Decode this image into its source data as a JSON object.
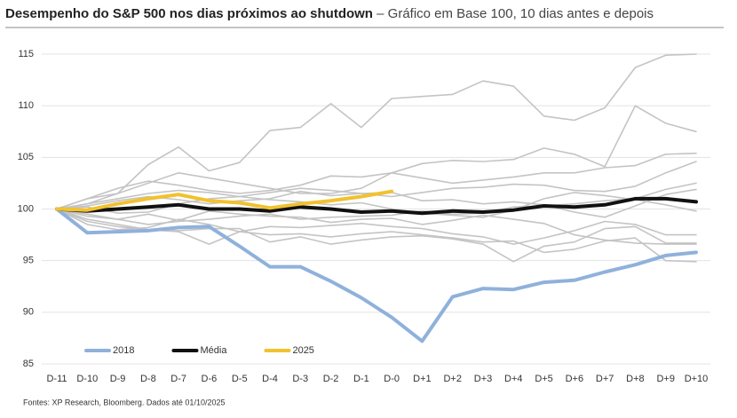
{
  "chart_data": {
    "type": "line",
    "title": "Desempenho do S&P 500 nos dias próximos ao shutdown",
    "subtitle": " – Gráfico em Base 100, 10 dias antes e depois",
    "footnote": "Fontes: XP Research, Bloomberg. Dados até 01/10/2025",
    "categories": [
      "D-11",
      "D-10",
      "D-9",
      "D-8",
      "D-7",
      "D-6",
      "D-5",
      "D-4",
      "D-3",
      "D-2",
      "D-1",
      "D-0",
      "D+1",
      "D+2",
      "D+3",
      "D+4",
      "D+5",
      "D+6",
      "D+7",
      "D+8",
      "D+9",
      "D+10"
    ],
    "ylim": [
      85,
      115
    ],
    "yticks": [
      85,
      90,
      95,
      100,
      105,
      110,
      115
    ],
    "grid": true,
    "legend": "lower left",
    "series": [
      {
        "color": "#c4c4c4",
        "values": [
          100,
          101,
          101.5,
          104.3,
          106,
          103.7,
          104.5,
          107.6,
          107.9,
          110.2,
          107.9,
          110.7,
          110.9,
          111.1,
          112.4,
          111.9,
          109,
          108.6,
          109.8,
          113.7,
          114.9,
          115
        ]
      },
      {
        "color": "#c4c4c4",
        "values": [
          100,
          100.5,
          101.5,
          102.5,
          103.5,
          103,
          102.5,
          102,
          101.5,
          101.5,
          102,
          103.5,
          104.4,
          104.7,
          104.6,
          104.8,
          105.9,
          105.3,
          104.1,
          110,
          108.3,
          107.5
        ]
      },
      {
        "color": "#c4c4c4",
        "values": [
          100,
          101,
          102,
          102.7,
          102.3,
          101.8,
          101.5,
          101.8,
          102.3,
          103.2,
          103.1,
          103.5,
          103,
          102.5,
          102.8,
          103.1,
          103.5,
          103.5,
          104,
          104.2,
          105.3,
          105.4
        ]
      },
      {
        "color": "#c4c4c4",
        "values": [
          100,
          100.5,
          101,
          101.5,
          101.8,
          101.6,
          101.2,
          101.6,
          102,
          101.8,
          101.5,
          101.2,
          101.6,
          102,
          102.1,
          102.4,
          102.3,
          101.8,
          101.7,
          102.2,
          103.5,
          104.6
        ]
      },
      {
        "color": "#c4c4c4",
        "values": [
          100,
          99.5,
          99,
          98.5,
          98.8,
          99,
          99.3,
          99.5,
          99,
          99.2,
          99.3,
          99.4,
          99.8,
          99.5,
          99.6,
          100.2,
          100.3,
          100.5,
          100.8,
          101,
          101.9,
          102.5
        ]
      },
      {
        "color": "#c4c4c4",
        "values": [
          100,
          99,
          98.5,
          98,
          97.8,
          96.6,
          97.8,
          98.3,
          98.2,
          98.4,
          98.6,
          98.3,
          98.1,
          97.6,
          97.3,
          96.6,
          97.2,
          97.9,
          98.8,
          98.5,
          97.5,
          97.5
        ]
      },
      {
        "color": "#c4c4c4",
        "values": [
          100,
          98.8,
          98.3,
          98,
          97.9,
          98.1,
          98.1,
          96.8,
          97.3,
          96.6,
          97,
          97.3,
          97.4,
          97.1,
          96.6,
          94.9,
          96.4,
          96.8,
          98.1,
          98.3,
          96.7,
          96.7
        ]
      },
      {
        "color": "#c4c4c4",
        "values": [
          100,
          98.5,
          98,
          98.2,
          99,
          98.5,
          97.8,
          97.5,
          97.6,
          97.3,
          97.6,
          97.8,
          97.5,
          97.2,
          96.8,
          96.9,
          95.8,
          96.1,
          96.9,
          97.2,
          95,
          94.9
        ]
      },
      {
        "color": "#c4c4c4",
        "values": [
          100,
          100.3,
          100.8,
          101.2,
          100.9,
          100.5,
          100.8,
          101,
          101.7,
          101.3,
          101.5,
          101.6,
          100.8,
          100.9,
          100.5,
          100.7,
          100.4,
          99.7,
          99.2,
          100.3,
          101.4,
          101.9
        ]
      },
      {
        "color": "#c4c4c4",
        "values": [
          100,
          99.3,
          99,
          99.5,
          98.9,
          99.8,
          99.5,
          99.3,
          99.2,
          98.7,
          99,
          99.1,
          98.5,
          98.9,
          99.4,
          99,
          98.6,
          97.5,
          97,
          96.7,
          96.6,
          96.6
        ]
      },
      {
        "color": "#c4c4c4",
        "values": [
          100,
          100.2,
          99.6,
          99.7,
          100.5,
          101,
          101.2,
          100.9,
          100.7,
          100.4,
          100.6,
          100,
          99.6,
          99.4,
          99.2,
          99.9,
          101,
          101.6,
          101.3,
          100.9,
          100.4,
          99.8
        ]
      },
      {
        "name": "2018",
        "color": "#8fb1dc",
        "values": [
          100,
          97.7,
          97.8,
          97.9,
          98.2,
          98.3,
          96.4,
          94.4,
          94.4,
          93.0,
          91.4,
          89.5,
          87.2,
          91.5,
          92.3,
          92.2,
          92.9,
          93.1,
          93.9,
          94.6,
          95.5,
          95.8
        ]
      },
      {
        "name": "Média",
        "color": "#111111",
        "values": [
          100,
          99.8,
          100.0,
          100.2,
          100.4,
          100.0,
          100.0,
          99.8,
          100.2,
          100.0,
          99.7,
          99.8,
          99.6,
          99.8,
          99.7,
          99.9,
          100.3,
          100.2,
          100.4,
          101.0,
          101.0,
          100.7
        ]
      },
      {
        "name": "2025",
        "color": "#f2c12e",
        "values": [
          100,
          99.9,
          100.5,
          101.0,
          101.4,
          100.8,
          100.6,
          100.1,
          100.5,
          100.8,
          101.2,
          101.7,
          null,
          null,
          null,
          null,
          null,
          null,
          null,
          null,
          null,
          null
        ]
      }
    ]
  }
}
